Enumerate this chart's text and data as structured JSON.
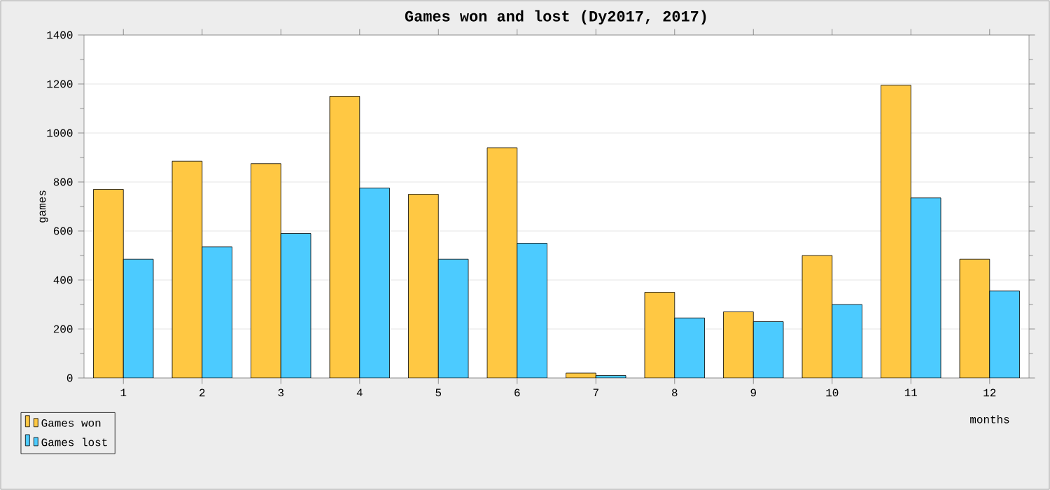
{
  "chart_data": {
    "type": "bar",
    "title": "Games won and lost (Dy2017, 2017)",
    "xlabel": "months",
    "ylabel": "games",
    "categories": [
      "1",
      "2",
      "3",
      "4",
      "5",
      "6",
      "7",
      "8",
      "9",
      "10",
      "11",
      "12"
    ],
    "series": [
      {
        "name": "Games won",
        "color": "#ffc843",
        "values": [
          770,
          885,
          875,
          1150,
          750,
          940,
          20,
          350,
          270,
          500,
          1195,
          485
        ]
      },
      {
        "name": "Games lost",
        "color": "#4ccbff",
        "values": [
          485,
          535,
          590,
          775,
          485,
          550,
          10,
          245,
          230,
          300,
          735,
          355
        ]
      }
    ],
    "ylim": [
      0,
      1400
    ],
    "yticks": [
      0,
      200,
      400,
      600,
      800,
      1000,
      1200,
      1400
    ],
    "grid": "y",
    "legend": "bottom left"
  }
}
